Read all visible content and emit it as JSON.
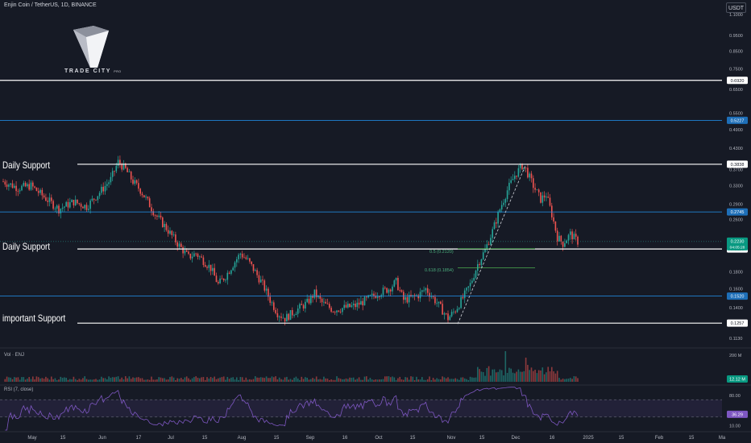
{
  "header": {
    "symbol_title": "Enjin Coin / TetherUS, 1D, BINANCE",
    "currency_button": "USDT"
  },
  "logo": {
    "text": "TRADE CITY",
    "suffix": "PRO"
  },
  "colors": {
    "background": "#161a25",
    "up": "#26a69a",
    "down": "#ef5350",
    "rsi": "#7e57c2",
    "level_white": "#ffffff",
    "level_blue": "#2196f3",
    "fib": "#4caf50",
    "grid": "#232836"
  },
  "panes": {
    "volume_label": "Vol · ENJ",
    "rsi_label": "RSI (7, close)"
  },
  "annotations": {
    "support_labels": [
      "Daily Support",
      "Daily Support",
      "important Support"
    ],
    "fib_levels": [
      {
        "label": "0.5 (0.2120)",
        "value": 0.212
      },
      {
        "label": "0.618 (0.1854)",
        "value": 0.1854
      }
    ]
  },
  "chart_data": [
    {
      "type": "candlestick",
      "title": "Enjin Coin / TetherUS, 1D, BINANCE",
      "y_scale": "log",
      "ylim": [
        0.108,
        1.15
      ],
      "y_ticks": [
        1.1,
        0.95,
        0.85,
        0.75,
        0.65,
        0.55,
        0.49,
        0.43,
        0.37,
        0.33,
        0.29,
        0.26,
        0.235,
        0.21,
        0.18,
        0.16,
        0.14,
        0.113
      ],
      "y_tick_labels": [
        "1.1000",
        "0.9500",
        "0.8500",
        "0.7500",
        "0.6500",
        "0.5500",
        "0.4900",
        "0.4300",
        "0.3700",
        "0.3300",
        "0.2900",
        "0.2600",
        "",
        "",
        "0.1800",
        "0.1600",
        "0.1400",
        "0.1130"
      ],
      "x_tick_labels": [
        "May",
        "15",
        "Jun",
        "17",
        "Jul",
        "15",
        "Aug",
        "15",
        "Sep",
        "16",
        "Oct",
        "15",
        "Nov",
        "15",
        "Dec",
        "16",
        "2025",
        "15",
        "Feb",
        "15",
        "Ma"
      ],
      "horizontal_levels": [
        {
          "value": 0.692,
          "label": "0.6920",
          "color": "white"
        },
        {
          "value": 0.5227,
          "label": "0.5227",
          "color": "blue"
        },
        {
          "value": 0.3838,
          "label": "0.3838",
          "color": "white"
        },
        {
          "value": 0.2745,
          "label": "0.2745",
          "color": "blue"
        },
        {
          "value": 0.2116,
          "label": "0.2116",
          "color": "white"
        },
        {
          "value": 0.152,
          "label": "0.1520",
          "color": "blue"
        },
        {
          "value": 0.1257,
          "label": "0.1257",
          "color": "white"
        }
      ],
      "current_price": {
        "value": 0.223,
        "label": "0.2230",
        "countdown": "04:05:28"
      },
      "price_path": [
        [
          0,
          0.34
        ],
        [
          8,
          0.325
        ],
        [
          15,
          0.33
        ],
        [
          22,
          0.305
        ],
        [
          30,
          0.28
        ],
        [
          38,
          0.295
        ],
        [
          45,
          0.285
        ],
        [
          52,
          0.315
        ],
        [
          58,
          0.345
        ],
        [
          62,
          0.39
        ],
        [
          66,
          0.37
        ],
        [
          70,
          0.34
        ],
        [
          74,
          0.32
        ],
        [
          78,
          0.295
        ],
        [
          82,
          0.27
        ],
        [
          88,
          0.245
        ],
        [
          94,
          0.22
        ],
        [
          100,
          0.2
        ],
        [
          104,
          0.205
        ],
        [
          108,
          0.195
        ],
        [
          112,
          0.185
        ],
        [
          116,
          0.165
        ],
        [
          120,
          0.175
        ],
        [
          124,
          0.19
        ],
        [
          128,
          0.205
        ],
        [
          132,
          0.195
        ],
        [
          136,
          0.18
        ],
        [
          140,
          0.165
        ],
        [
          144,
          0.148
        ],
        [
          148,
          0.135
        ],
        [
          152,
          0.13
        ],
        [
          156,
          0.135
        ],
        [
          160,
          0.14
        ],
        [
          164,
          0.145
        ],
        [
          168,
          0.155
        ],
        [
          172,
          0.145
        ],
        [
          178,
          0.138
        ],
        [
          184,
          0.14
        ],
        [
          190,
          0.142
        ],
        [
          196,
          0.148
        ],
        [
          202,
          0.155
        ],
        [
          208,
          0.16
        ],
        [
          212,
          0.168
        ],
        [
          216,
          0.148
        ],
        [
          220,
          0.15
        ],
        [
          224,
          0.153
        ],
        [
          228,
          0.16
        ],
        [
          232,
          0.15
        ],
        [
          236,
          0.14
        ],
        [
          240,
          0.13
        ],
        [
          244,
          0.138
        ],
        [
          248,
          0.15
        ],
        [
          252,
          0.165
        ],
        [
          256,
          0.19
        ],
        [
          260,
          0.21
        ],
        [
          264,
          0.24
        ],
        [
          268,
          0.28
        ],
        [
          272,
          0.32
        ],
        [
          276,
          0.355
        ],
        [
          280,
          0.38
        ],
        [
          282,
          0.37
        ],
        [
          286,
          0.33
        ],
        [
          290,
          0.3
        ],
        [
          293,
          0.31
        ],
        [
          296,
          0.27
        ],
        [
          299,
          0.23
        ],
        [
          302,
          0.22
        ],
        [
          306,
          0.235
        ],
        [
          310,
          0.223
        ]
      ],
      "candle_count": 311
    },
    {
      "type": "bar",
      "title": "Vol · ENJ",
      "last_value_label": "12.12 M",
      "y_tick_labels": [
        "200 M"
      ],
      "note": "daily volume; spike near late November/early December"
    },
    {
      "type": "line",
      "title": "RSI (7, close)",
      "ylim": [
        0,
        100
      ],
      "y_ticks": [
        80,
        50,
        10
      ],
      "y_tick_labels": [
        "80.00",
        "",
        "10.00"
      ],
      "band": [
        30,
        70
      ],
      "last_value": 36.29,
      "last_value_label": "36.29"
    }
  ]
}
